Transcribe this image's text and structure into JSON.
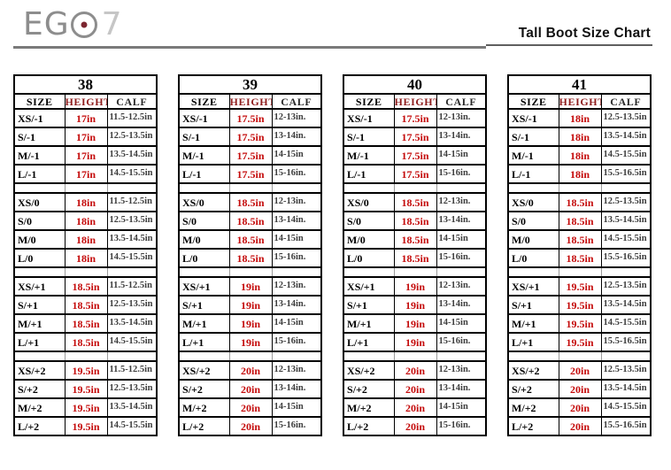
{
  "colors": {
    "height_value_red": "#c40a0a",
    "height_header_red": "#8f1d1d",
    "calf_text": "#3d3d3d",
    "logo_gray": "#8d8d8d",
    "logo_seven_gray": "#c6c6c6",
    "logo_dot_red": "#7c2630",
    "border_black": "#000000"
  },
  "header": {
    "logo_eg": "EG",
    "logo_seven": "7",
    "title": "Tall Boot Size Chart"
  },
  "columns": [
    "SIZE",
    "HEIGHT",
    "CALF"
  ],
  "tables": [
    {
      "size_label": "38",
      "groups": [
        {
          "rows": [
            [
              "XS/-1",
              "17in",
              "11.5-12.5in"
            ],
            [
              "S/-1",
              "17in",
              "12.5-13.5in"
            ],
            [
              "M/-1",
              "17in",
              "13.5-14.5in"
            ],
            [
              "L/-1",
              "17in",
              "14.5-15.5in"
            ]
          ]
        },
        {
          "rows": [
            [
              "XS/0",
              "18in",
              "11.5-12.5in"
            ],
            [
              "S/0",
              "18in",
              "12.5-13.5in"
            ],
            [
              "M/0",
              "18in",
              "13.5-14.5in"
            ],
            [
              "L/0",
              "18in",
              "14.5-15.5in"
            ]
          ]
        },
        {
          "rows": [
            [
              "XS/+1",
              "18.5in",
              "11.5-12.5in"
            ],
            [
              "S/+1",
              "18.5in",
              "12.5-13.5in"
            ],
            [
              "M/+1",
              "18.5in",
              "13.5-14.5in"
            ],
            [
              "L/+1",
              "18.5in",
              "14.5-15.5in"
            ]
          ]
        },
        {
          "rows": [
            [
              "XS/+2",
              "19.5in",
              "11.5-12.5in"
            ],
            [
              "S/+2",
              "19.5in",
              "12.5-13.5in"
            ],
            [
              "M/+2",
              "19.5in",
              "13.5-14.5in"
            ],
            [
              "L/+2",
              "19.5in",
              "14.5-15.5in"
            ]
          ]
        }
      ]
    },
    {
      "size_label": "39",
      "groups": [
        {
          "rows": [
            [
              "XS/-1",
              "17.5in",
              "12-13in."
            ],
            [
              "S/-1",
              "17.5in",
              "13-14in."
            ],
            [
              "M/-1",
              "17.5in",
              "14-15in"
            ],
            [
              "L/-1",
              "17.5in",
              "15-16in."
            ]
          ]
        },
        {
          "rows": [
            [
              "XS/0",
              "18.5in",
              "12-13in."
            ],
            [
              "S/0",
              "18.5in",
              "13-14in."
            ],
            [
              "M/0",
              "18.5in",
              "14-15in"
            ],
            [
              "L/0",
              "18.5in",
              "15-16in."
            ]
          ]
        },
        {
          "rows": [
            [
              "XS/+1",
              "19in",
              "12-13in."
            ],
            [
              "S/+1",
              "19in",
              "13-14in."
            ],
            [
              "M/+1",
              "19in",
              "14-15in"
            ],
            [
              "L/+1",
              "19in",
              "15-16in."
            ]
          ]
        },
        {
          "rows": [
            [
              "XS/+2",
              "20in",
              "12-13in."
            ],
            [
              "S/+2",
              "20in",
              "13-14in."
            ],
            [
              "M/+2",
              "20in",
              "14-15in"
            ],
            [
              "L/+2",
              "20in",
              "15-16in."
            ]
          ]
        }
      ]
    },
    {
      "size_label": "40",
      "groups": [
        {
          "rows": [
            [
              "XS/-1",
              "17.5in",
              "12-13in."
            ],
            [
              "S/-1",
              "17.5in",
              "13-14in."
            ],
            [
              "M/-1",
              "17.5in",
              "14-15in"
            ],
            [
              "L/-1",
              "17.5in",
              "15-16in."
            ]
          ]
        },
        {
          "rows": [
            [
              "XS/0",
              "18.5in",
              "12-13in."
            ],
            [
              "S/0",
              "18.5in",
              "13-14in."
            ],
            [
              "M/0",
              "18.5in",
              "14-15in"
            ],
            [
              "L/0",
              "18.5in",
              "15-16in."
            ]
          ]
        },
        {
          "rows": [
            [
              "XS/+1",
              "19in",
              "12-13in."
            ],
            [
              "S/+1",
              "19in",
              "13-14in."
            ],
            [
              "M/+1",
              "19in",
              "14-15in"
            ],
            [
              "L/+1",
              "19in",
              "15-16in."
            ]
          ]
        },
        {
          "rows": [
            [
              "XS/+2",
              "20in",
              "12-13in."
            ],
            [
              "S/+2",
              "20in",
              "13-14in."
            ],
            [
              "M/+2",
              "20in",
              "14-15in"
            ],
            [
              "L/+2",
              "20in",
              "15-16in."
            ]
          ]
        }
      ]
    },
    {
      "size_label": "41",
      "groups": [
        {
          "rows": [
            [
              "XS/-1",
              "18in",
              "12.5-13.5in"
            ],
            [
              "S/-1",
              "18in",
              "13.5-14.5in"
            ],
            [
              "M/-1",
              "18in",
              "14.5-15.5in"
            ],
            [
              "L/-1",
              "18in",
              "15.5-16.5in"
            ]
          ]
        },
        {
          "rows": [
            [
              "XS/0",
              "18.5in",
              "12.5-13.5in"
            ],
            [
              "S/0",
              "18.5in",
              "13.5-14.5in"
            ],
            [
              "M/0",
              "18.5in",
              "14.5-15.5in"
            ],
            [
              "L/0",
              "18.5in",
              "15.5-16.5in"
            ]
          ]
        },
        {
          "rows": [
            [
              "XS/+1",
              "19.5in",
              "12.5-13.5in"
            ],
            [
              "S/+1",
              "19.5in",
              "13.5-14.5in"
            ],
            [
              "M/+1",
              "19.5in",
              "14.5-15.5in"
            ],
            [
              "L/+1",
              "19.5in",
              "15.5-16.5in"
            ]
          ]
        },
        {
          "rows": [
            [
              "XS/+2",
              "20in",
              "12.5-13.5in"
            ],
            [
              "S/+2",
              "20in",
              "13.5-14.5in"
            ],
            [
              "M/+2",
              "20in",
              "14.5-15.5in"
            ],
            [
              "L/+2",
              "20in",
              "15.5-16.5in"
            ]
          ]
        }
      ]
    }
  ]
}
